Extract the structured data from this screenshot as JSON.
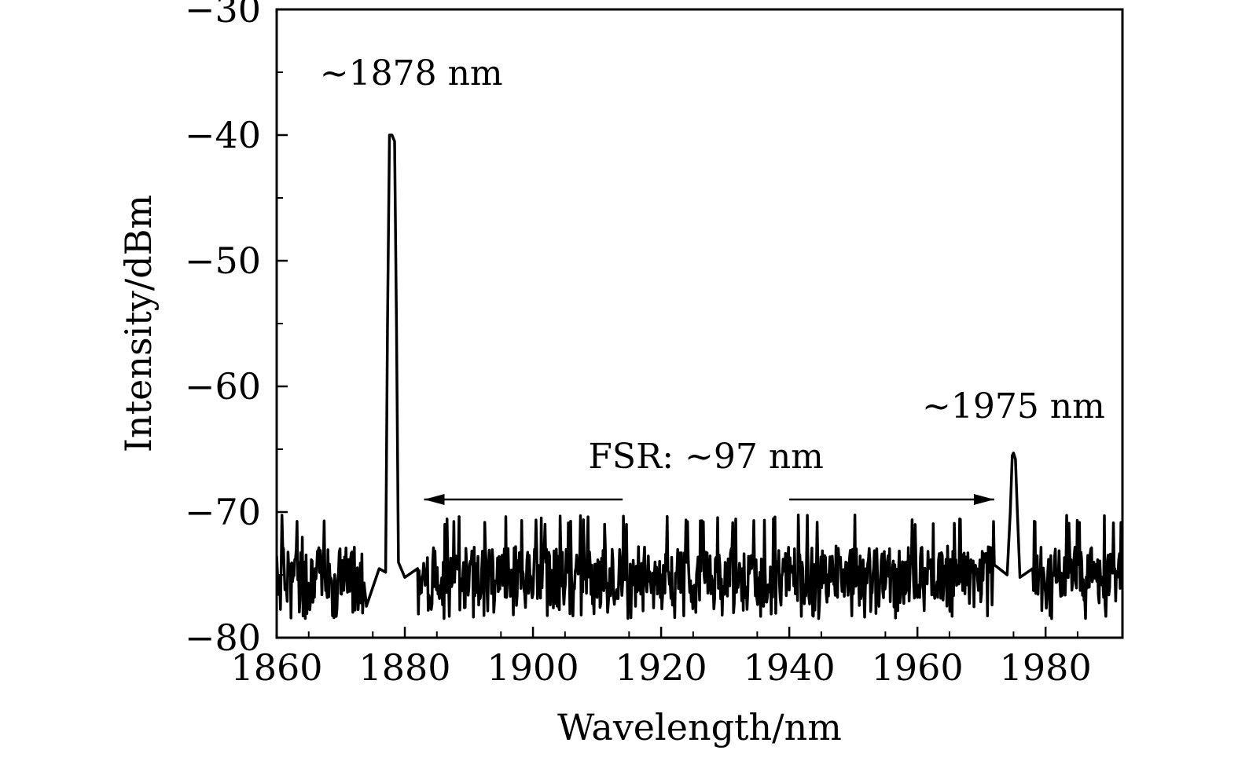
{
  "chart_data": {
    "type": "line",
    "title": "",
    "xlabel": "Wavelength/nm",
    "ylabel": "Intensity/dBm",
    "xlim": [
      1860,
      1992
    ],
    "ylim": [
      -80,
      -30
    ],
    "xticks": [
      1860,
      1880,
      1900,
      1920,
      1940,
      1960,
      1980
    ],
    "xtick_labels": [
      "1860",
      "1880",
      "1900",
      "1920",
      "1940",
      "1960",
      "1980"
    ],
    "yticks": [
      -80,
      -70,
      -60,
      -50,
      -40,
      -30
    ],
    "ytick_labels": [
      "−80",
      "−70",
      "−60",
      "−50",
      "−40",
      "−30"
    ],
    "grid": false,
    "legend": "none",
    "line_color": "#000000",
    "noise_floor": {
      "mean": -74.8,
      "min": -78.5,
      "max": -71.0
    },
    "peaks": [
      {
        "wavelength": 1878,
        "intensity": -40
      },
      {
        "wavelength": 1975,
        "intensity": -65.5
      }
    ],
    "series": [
      {
        "x": [
          1860,
          1862,
          1864,
          1866,
          1868,
          1870,
          1872,
          1874,
          1876,
          1877,
          1877.3,
          1877.6,
          1878,
          1878.4,
          1878.7,
          1879,
          1880,
          1882,
          1884,
          1886,
          1888,
          1890,
          1892,
          1894,
          1896,
          1898,
          1900,
          1902,
          1904,
          1906,
          1908,
          1910,
          1912,
          1914,
          1916,
          1918,
          1920,
          1922,
          1924,
          1926,
          1928,
          1930,
          1932,
          1934,
          1936,
          1938,
          1940,
          1942,
          1944,
          1946,
          1948,
          1950,
          1952,
          1954,
          1956,
          1958,
          1960,
          1962,
          1964,
          1966,
          1968,
          1970,
          1972,
          1974,
          1974.5,
          1974.8,
          1975,
          1975.3,
          1975.6,
          1976,
          1978,
          1980,
          1982,
          1984,
          1986,
          1988,
          1990,
          1992
        ],
        "y": [
          -73.5,
          -75.0,
          -72.0,
          -74.5,
          -73.0,
          -76.5,
          -74.0,
          -77.5,
          -74.5,
          -74.8,
          -55.0,
          -40.0,
          -40.0,
          -40.5,
          -55.0,
          -74.0,
          -75.2,
          -74.5,
          -77.5,
          -74.0,
          -73.5,
          -76.0,
          -74.5,
          -77.0,
          -75.5,
          -73.5,
          -76.5,
          -74.0,
          -77.5,
          -75.0,
          -73.8,
          -76.8,
          -74.5,
          -75.5,
          -77.5,
          -73.5,
          -75.0,
          -76.5,
          -74.0,
          -77.0,
          -75.5,
          -74.0,
          -76.0,
          -73.5,
          -77.5,
          -74.8,
          -76.2,
          -74.0,
          -77.8,
          -75.0,
          -73.6,
          -76.5,
          -74.5,
          -77.5,
          -75.2,
          -74.0,
          -76.8,
          -74.5,
          -77.0,
          -73.8,
          -75.5,
          -76.5,
          -74.2,
          -75.0,
          -70.0,
          -65.5,
          -65.3,
          -65.8,
          -70.0,
          -75.2,
          -74.5,
          -76.5,
          -75.0,
          -73.8,
          -77.0,
          -75.5,
          -76.0,
          -74.0
        ]
      }
    ],
    "annotations": [
      {
        "text": "~1878 nm",
        "x": 1881,
        "y": -36
      },
      {
        "text": "~1975 nm",
        "x": 1975,
        "y": -62.5
      },
      {
        "text": "FSR: ~97 nm",
        "x": 1927,
        "y": -66.5
      }
    ],
    "fsr_arrow": {
      "left_to": 1883,
      "left_from": 1914,
      "right_from": 1940,
      "right_to": 1972,
      "y": -69
    }
  }
}
